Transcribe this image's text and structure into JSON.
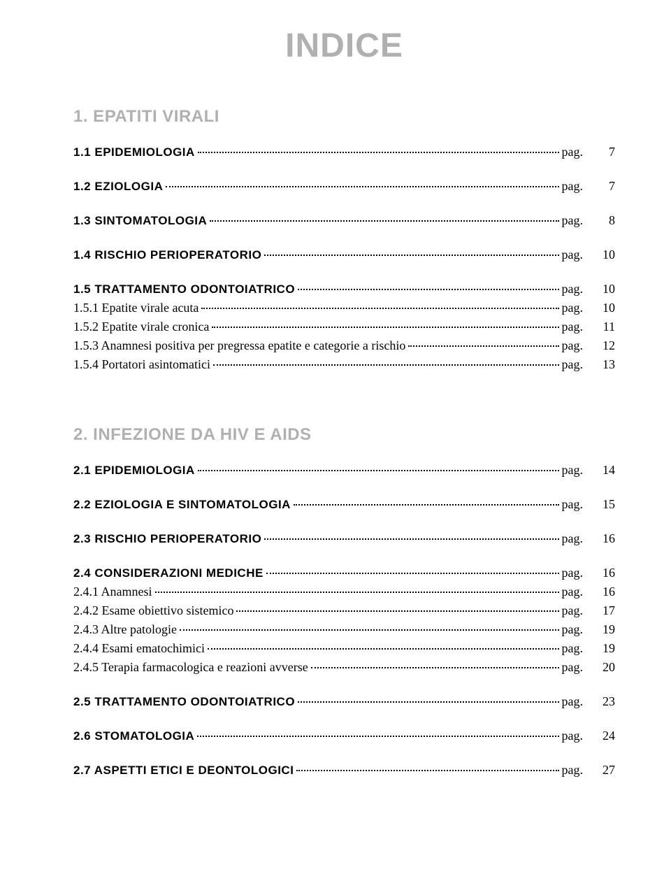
{
  "colors": {
    "accent": "#b0b0b0",
    "text": "#000000",
    "background": "#ffffff"
  },
  "typography": {
    "title_fontsize": 48,
    "chapter_fontsize": 24,
    "section_fontsize": 17,
    "sub_fontsize": 18,
    "pag_fontsize": 18
  },
  "title": "INDICE",
  "pag_label": "pag.",
  "chapters": [
    {
      "title": "1. EPATITI VIRALI",
      "sections": [
        {
          "label": "1.1 EPIDEMIOLOGIA",
          "page": "7",
          "subs": []
        },
        {
          "label": "1.2 EZIOLOGIA",
          "page": "7",
          "subs": []
        },
        {
          "label": "1.3 SINTOMATOLOGIA",
          "page": "8",
          "subs": []
        },
        {
          "label": "1.4 RISCHIO PERIOPERATORIO",
          "page": "10",
          "subs": []
        },
        {
          "label": "1.5 TRATTAMENTO ODONTOIATRICO",
          "page": "10",
          "subs": [
            {
              "label": "1.5.1 Epatite virale acuta",
              "page": "10"
            },
            {
              "label": "1.5.2 Epatite virale cronica",
              "page": "11"
            },
            {
              "label": "1.5.3 Anamnesi positiva per pregressa epatite e categorie a rischio",
              "page": "12"
            },
            {
              "label": "1.5.4 Portatori asintomatici",
              "page": "13"
            }
          ]
        }
      ]
    },
    {
      "title": "2. INFEZIONE DA HIV E AIDS",
      "sections": [
        {
          "label": "2.1 EPIDEMIOLOGIA",
          "page": "14",
          "subs": []
        },
        {
          "label": "2.2 EZIOLOGIA E SINTOMATOLOGIA",
          "page": "15",
          "subs": []
        },
        {
          "label": "2.3 RISCHIO PERIOPERATORIO",
          "page": "16",
          "subs": []
        },
        {
          "label": "2.4 CONSIDERAZIONI MEDICHE",
          "page": "16",
          "subs": [
            {
              "label": "2.4.1 Anamnesi",
              "page": "16"
            },
            {
              "label": "2.4.2 Esame obiettivo sistemico",
              "page": "17"
            },
            {
              "label": "2.4.3 Altre patologie",
              "page": "19"
            },
            {
              "label": "2.4.4 Esami ematochimici",
              "page": "19"
            },
            {
              "label": "2.4.5 Terapia farmacologica e reazioni avverse",
              "page": "20"
            }
          ]
        },
        {
          "label": "2.5 TRATTAMENTO ODONTOIATRICO",
          "page": "23",
          "subs": []
        },
        {
          "label": "2.6 STOMATOLOGIA",
          "page": "24",
          "subs": []
        },
        {
          "label": "2.7 ASPETTI ETICI E DEONTOLOGICI",
          "page": "27",
          "subs": []
        }
      ]
    }
  ]
}
